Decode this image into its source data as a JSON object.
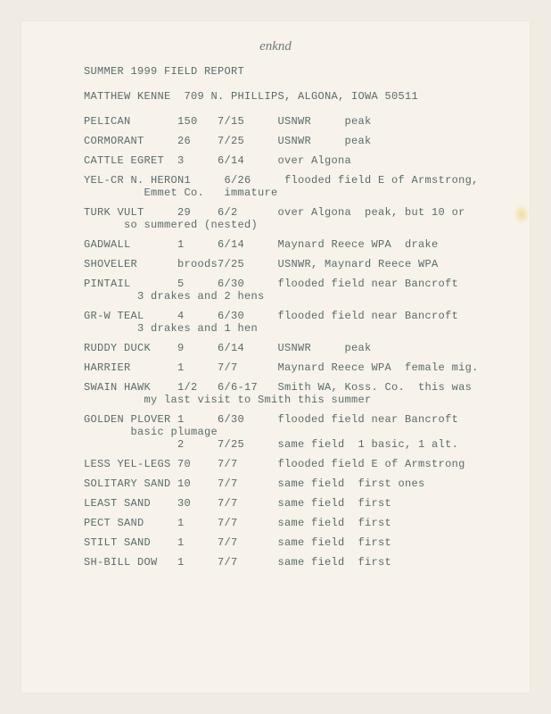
{
  "handwritten": "enknd",
  "title": "SUMMER 1999 FIELD REPORT",
  "author_line": "MATTHEW KENNE  709 N. PHILLIPS, ALGONA, IOWA 50511",
  "rows": [
    {
      "species": "PELICAN",
      "count": "150",
      "date": "7/15",
      "notes": "USNWR     peak"
    },
    {
      "species": "CORMORANT",
      "count": "26",
      "date": "7/25",
      "notes": "USNWR     peak"
    },
    {
      "species": "CATTLE EGRET",
      "count": "3",
      "date": "6/14",
      "notes": "over Algona"
    },
    {
      "species": "YEL-CR N. HERON",
      "count": "1",
      "date": "6/26",
      "notes": "flooded field E of Armstrong,",
      "sub": "         Emmet Co.   immature"
    },
    {
      "species": "TURK VULT",
      "count": "29",
      "date": "6/2",
      "notes": "over Algona  peak, but 10 or",
      "sub": "      so summered (nested)"
    },
    {
      "species": "GADWALL",
      "count": "1",
      "date": "6/14",
      "notes": "Maynard Reece WPA  drake"
    },
    {
      "species": "SHOVELER",
      "count": "broods",
      "date": "7/25",
      "notes": "USNWR, Maynard Reece WPA"
    },
    {
      "species": "PINTAIL",
      "count": "5",
      "date": "6/30",
      "notes": "flooded field near Bancroft",
      "sub": "        3 drakes and 2 hens"
    },
    {
      "species": "GR-W TEAL",
      "count": "4",
      "date": "6/30",
      "notes": "flooded field near Bancroft",
      "sub": "        3 drakes and 1 hen"
    },
    {
      "species": "RUDDY DUCK",
      "count": "9",
      "date": "6/14",
      "notes": "USNWR     peak"
    },
    {
      "species": "HARRIER",
      "count": "1",
      "date": "7/7",
      "notes": "Maynard Reece WPA  female mig."
    },
    {
      "species": "SWAIN HAWK",
      "count": "1/2",
      "date": "6/6-17",
      "notes": "Smith WA, Koss. Co.  this was",
      "sub": "         my last visit to Smith this summer"
    },
    {
      "species": "GOLDEN PLOVER",
      "count": "1",
      "date": "6/30",
      "notes": "flooded field near Bancroft",
      "sub": "       basic plumage",
      "extra_count": "2",
      "extra_date": "7/25",
      "extra_notes": "same field  1 basic, 1 alt."
    },
    {
      "species": "LESS YEL-LEGS",
      "count": "70",
      "date": "7/7",
      "notes": "flooded field E of Armstrong"
    },
    {
      "species": "SOLITARY SAND",
      "count": "10",
      "date": "7/7",
      "notes": "same field  first ones"
    },
    {
      "species": "LEAST SAND",
      "count": "30",
      "date": "7/7",
      "notes": "same field  first"
    },
    {
      "species": "PECT SAND",
      "count": "1",
      "date": "7/7",
      "notes": "same field  first"
    },
    {
      "species": "STILT SAND",
      "count": "1",
      "date": "7/7",
      "notes": "same field  first"
    },
    {
      "species": "SH-BILL DOW",
      "count": "1",
      "date": "7/7",
      "notes": "same field  first"
    }
  ],
  "cols": {
    "species": 14,
    "count": 6,
    "date": 9,
    "notes": 0
  }
}
